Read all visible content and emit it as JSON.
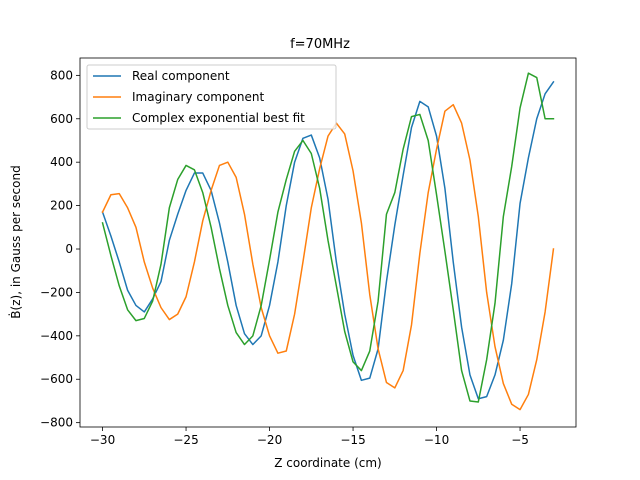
{
  "chart_data": {
    "type": "line",
    "title": "f=70MHz",
    "xlabel": "Z coordinate (cm)",
    "ylabel": "Ḃ(z), in Gauss per second",
    "xlim": [
      -31.35,
      -1.65
    ],
    "ylim": [
      -820,
      880
    ],
    "xticks": [
      -30,
      -25,
      -20,
      -15,
      -10,
      -5
    ],
    "yticks": [
      -800,
      -600,
      -400,
      -200,
      0,
      200,
      400,
      600,
      800
    ],
    "legend_position": "top-left",
    "grid": false,
    "series": [
      {
        "name": "Real component",
        "color": "#1f77b4",
        "x": [
          -30.0,
          -29.5,
          -29.0,
          -28.5,
          -28.0,
          -27.5,
          -27.0,
          -26.5,
          -26.0,
          -25.5,
          -25.0,
          -24.5,
          -24.0,
          -23.5,
          -23.0,
          -22.5,
          -22.0,
          -21.5,
          -21.0,
          -20.5,
          -20.0,
          -19.5,
          -19.0,
          -18.5,
          -18.0,
          -17.5,
          -17.0,
          -16.5,
          -16.0,
          -15.5,
          -15.0,
          -14.5,
          -14.0,
          -13.5,
          -13.0,
          -12.5,
          -12.0,
          -11.5,
          -11.0,
          -10.5,
          -10.0,
          -9.5,
          -9.0,
          -8.5,
          -8.0,
          -7.5,
          -7.0,
          -6.5,
          -6.0,
          -5.5,
          -5.0,
          -4.5,
          -4.0,
          -3.5,
          -3.0
        ],
        "y": [
          170,
          60,
          -60,
          -190,
          -260,
          -290,
          -230,
          -150,
          40,
          160,
          270,
          350,
          350,
          270,
          120,
          -60,
          -260,
          -390,
          -440,
          -400,
          -260,
          -60,
          200,
          400,
          510,
          525,
          420,
          230,
          -60,
          -300,
          -490,
          -605,
          -595,
          -460,
          -150,
          110,
          340,
          560,
          680,
          655,
          520,
          280,
          -60,
          -360,
          -580,
          -690,
          -680,
          -580,
          -420,
          -160,
          210,
          420,
          600,
          715,
          770
        ]
      },
      {
        "name": "Imaginary component",
        "color": "#ff7f0e",
        "x": [
          -30.0,
          -29.5,
          -29.0,
          -28.5,
          -28.0,
          -27.5,
          -27.0,
          -26.5,
          -26.0,
          -25.5,
          -25.0,
          -24.5,
          -24.0,
          -23.5,
          -23.0,
          -22.5,
          -22.0,
          -21.5,
          -21.0,
          -20.5,
          -20.0,
          -19.5,
          -19.0,
          -18.5,
          -18.0,
          -17.5,
          -17.0,
          -16.5,
          -16.0,
          -15.5,
          -15.0,
          -14.5,
          -14.0,
          -13.5,
          -13.0,
          -12.5,
          -12.0,
          -11.5,
          -11.0,
          -10.5,
          -10.0,
          -9.5,
          -9.0,
          -8.5,
          -8.0,
          -7.5,
          -7.0,
          -6.5,
          -6.0,
          -5.5,
          -5.0,
          -4.5,
          -4.0,
          -3.5,
          -3.0
        ],
        "y": [
          170,
          250,
          255,
          190,
          100,
          -60,
          -180,
          -270,
          -325,
          -300,
          -220,
          -60,
          130,
          270,
          385,
          400,
          330,
          160,
          -70,
          -270,
          -400,
          -480,
          -470,
          -300,
          -60,
          190,
          370,
          520,
          580,
          530,
          360,
          120,
          -210,
          -460,
          -615,
          -640,
          -560,
          -350,
          -20,
          260,
          460,
          635,
          665,
          580,
          410,
          150,
          -200,
          -450,
          -620,
          -715,
          -740,
          -670,
          -510,
          -290,
          0
        ]
      },
      {
        "name": "Complex exponential best fit",
        "color": "#2ca02c",
        "x": [
          -30.0,
          -29.5,
          -29.0,
          -28.5,
          -28.0,
          -27.5,
          -27.0,
          -26.5,
          -26.0,
          -25.5,
          -25.0,
          -24.5,
          -24.0,
          -23.5,
          -23.0,
          -22.5,
          -22.0,
          -21.5,
          -21.0,
          -20.5,
          -20.0,
          -19.5,
          -19.0,
          -18.5,
          -18.0,
          -17.5,
          -17.0,
          -16.5,
          -16.0,
          -15.5,
          -15.0,
          -14.5,
          -14.0,
          -13.5,
          -13.0,
          -12.5,
          -12.0,
          -11.5,
          -11.0,
          -10.5,
          -10.0,
          -9.5,
          -9.0,
          -8.5,
          -8.0,
          -7.5,
          -7.0,
          -6.5,
          -6.0,
          -5.5,
          -5.0,
          -4.5,
          -4.0,
          -3.5,
          -3.0
        ],
        "y": [
          120,
          -30,
          -170,
          -280,
          -330,
          -320,
          -240,
          -70,
          190,
          320,
          385,
          365,
          260,
          100,
          -90,
          -260,
          -385,
          -440,
          -400,
          -260,
          -50,
          170,
          320,
          450,
          500,
          440,
          280,
          40,
          -170,
          -380,
          -520,
          -560,
          -470,
          -240,
          160,
          260,
          460,
          610,
          620,
          500,
          250,
          -10,
          -280,
          -560,
          -700,
          -705,
          -510,
          -250,
          150,
          380,
          650,
          810,
          790,
          600,
          600
        ]
      }
    ]
  }
}
